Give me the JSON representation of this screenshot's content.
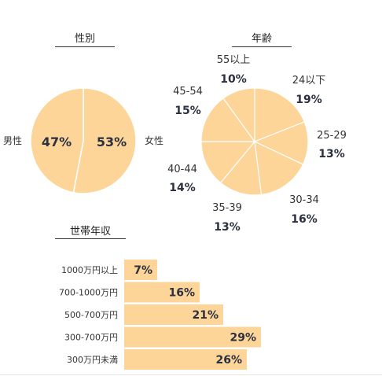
{
  "colors": {
    "fill": "#fdd598",
    "stroke": "#ffffff",
    "text": "#333333",
    "value_text": "#2a3040"
  },
  "chart_data": [
    {
      "type": "pie",
      "title": "性別",
      "labels": [
        "女性",
        "男性"
      ],
      "values": [
        53,
        47
      ],
      "value_labels": [
        "53%",
        "47%"
      ]
    },
    {
      "type": "pie",
      "title": "年齢",
      "labels": [
        "24以下",
        "25-29",
        "30-34",
        "35-39",
        "40-44",
        "45-54",
        "55以上"
      ],
      "values": [
        19,
        13,
        16,
        13,
        14,
        15,
        10
      ],
      "value_labels": [
        "19%",
        "13%",
        "16%",
        "13%",
        "14%",
        "15%",
        "10%"
      ]
    },
    {
      "type": "bar",
      "orientation": "horizontal",
      "title": "世帯年収",
      "categories": [
        "1000万円以上",
        "700-1000万円",
        "500-700万円",
        "300-700万円",
        "300万円未満"
      ],
      "values": [
        7,
        16,
        21,
        29,
        26
      ],
      "value_labels": [
        "7%",
        "16%",
        "21%",
        "29%",
        "26%"
      ]
    }
  ]
}
